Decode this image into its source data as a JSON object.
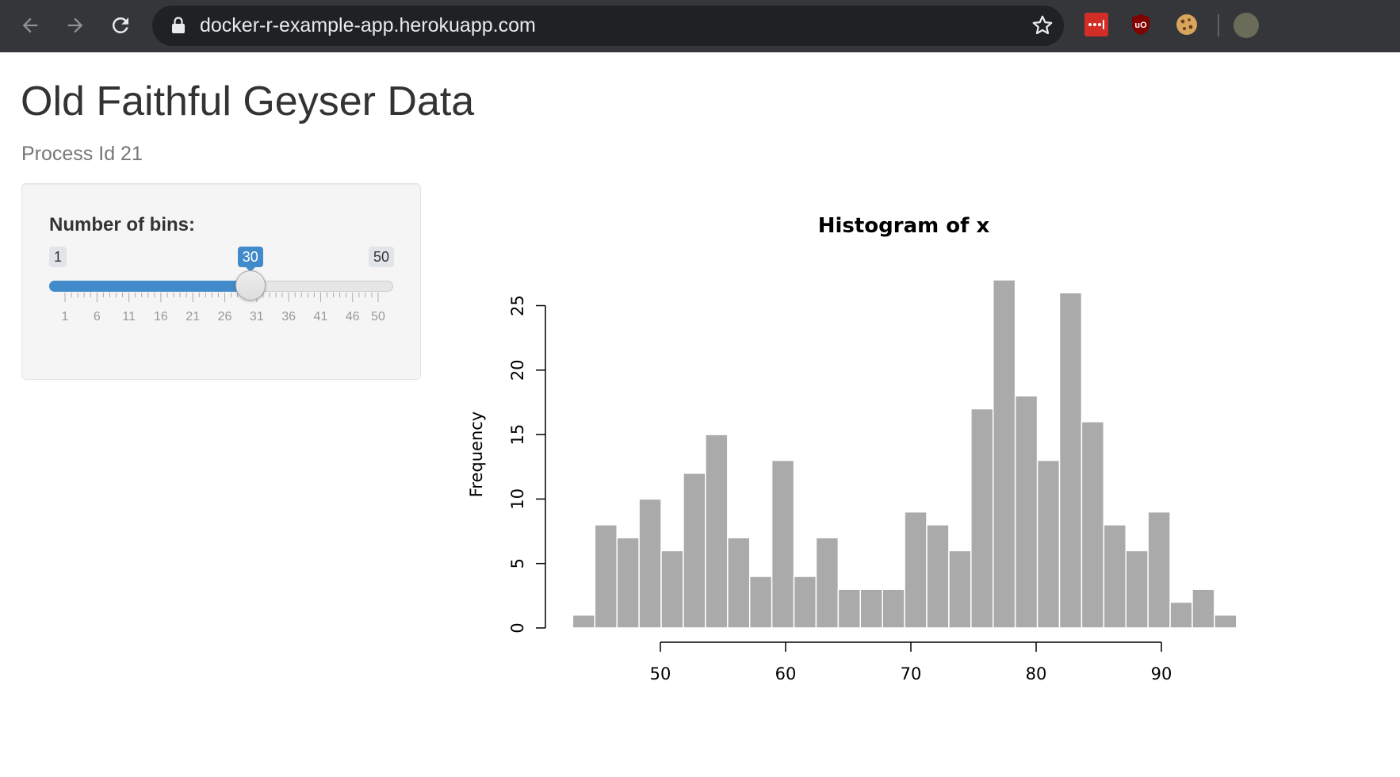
{
  "browser": {
    "url": "docker-r-example-app.herokuapp.com"
  },
  "page": {
    "title": "Old Faithful Geyser Data",
    "process_id": "Process Id 21"
  },
  "slider": {
    "label": "Number of bins:",
    "min": 1,
    "max": 50,
    "value": 30,
    "min_label": "1",
    "max_label": "50",
    "value_label": "30",
    "tick_labels": [
      "1",
      "6",
      "11",
      "16",
      "21",
      "26",
      "31",
      "36",
      "41",
      "46",
      "50"
    ],
    "accent_color": "#428bca"
  },
  "chart_data": {
    "type": "bar",
    "title": "Histogram of x",
    "xlabel": "",
    "ylabel": "Frequency",
    "bar_color": "#aaaaaa",
    "bin_start": 43,
    "bin_width": 1.7667,
    "values": [
      1,
      8,
      7,
      10,
      6,
      12,
      15,
      7,
      4,
      13,
      4,
      7,
      3,
      3,
      3,
      9,
      8,
      6,
      17,
      27,
      18,
      13,
      26,
      16,
      8,
      6,
      9,
      2,
      3,
      1
    ],
    "x_ticks": [
      50,
      60,
      70,
      80,
      90
    ],
    "y_ticks": [
      0,
      5,
      10,
      15,
      20,
      25
    ],
    "xlim": [
      43,
      96
    ],
    "ylim": [
      0,
      25
    ]
  }
}
